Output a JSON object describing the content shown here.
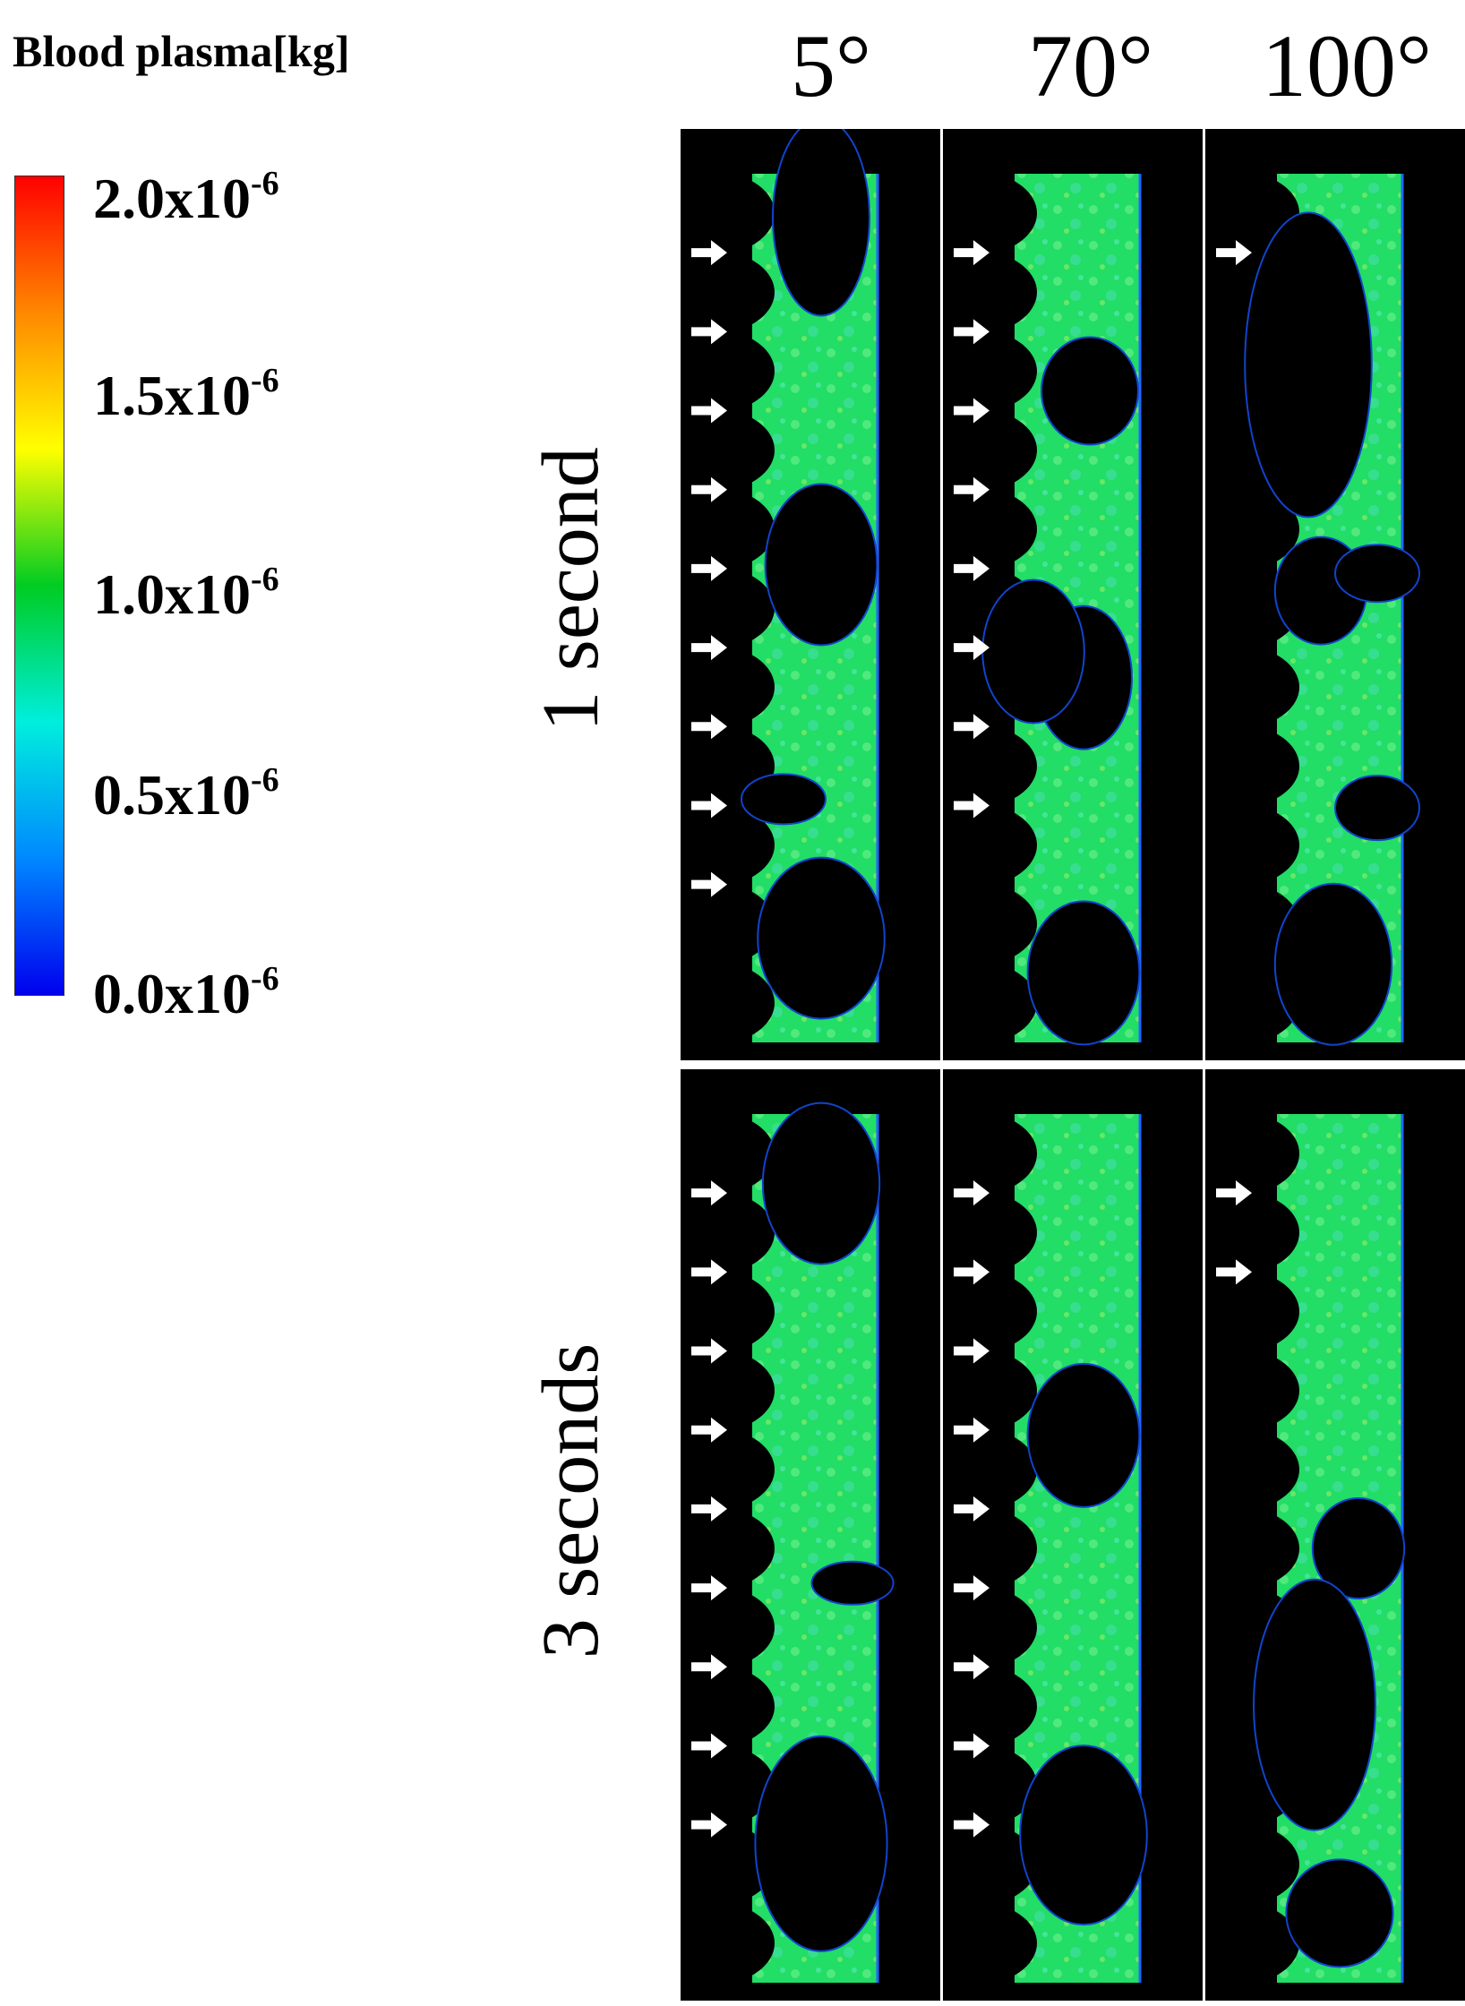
{
  "legend": {
    "title": "Blood plasma[kg]",
    "colors": [
      "#ff0000",
      "#ff8800",
      "#ffff00",
      "#00cc22",
      "#00eedd",
      "#0088ff",
      "#0000ee"
    ],
    "ticks": [
      {
        "mantissa": "2.0x10",
        "exp": "-6"
      },
      {
        "mantissa": "1.5x10",
        "exp": "-6"
      },
      {
        "mantissa": "1.0x10",
        "exp": "-6"
      },
      {
        "mantissa": "0.5x10",
        "exp": "-6"
      },
      {
        "mantissa": "0.0x10",
        "exp": "-6"
      }
    ]
  },
  "columns": [
    "5°",
    "70°",
    "100°"
  ],
  "rows": [
    "1 second",
    "3 seconds"
  ],
  "panels": [
    {
      "row": 0,
      "col": 0,
      "arrows": 9
    },
    {
      "row": 0,
      "col": 1,
      "arrows": 8
    },
    {
      "row": 0,
      "col": 2,
      "arrows": 1
    },
    {
      "row": 1,
      "col": 0,
      "arrows": 9
    },
    {
      "row": 1,
      "col": 1,
      "arrows": 9
    },
    {
      "row": 1,
      "col": 2,
      "arrows": 2
    }
  ],
  "colors": {
    "fluid": "#22dd66",
    "fluid_light": "#66ee88",
    "void": "#000000",
    "frame": "#bbbbbb"
  }
}
